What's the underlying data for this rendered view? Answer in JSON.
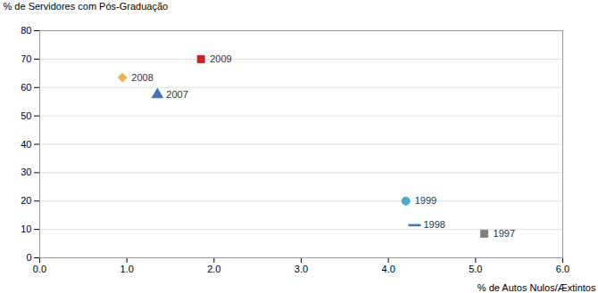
{
  "chart_data": {
    "type": "scatter",
    "xlabel": "% de Autos Nulos/Æxtintos",
    "ylabel": "% de Servidores com Pós-Graduação",
    "series": [
      {
        "name": "2009",
        "color": "#CC2222",
        "marker": "square",
        "x": [
          1.85
        ],
        "values": [
          70
        ]
      },
      {
        "name": "2008",
        "color": "#E8B84B",
        "marker": "diamond",
        "x": [
          0.95
        ],
        "values": [
          63.5
        ]
      },
      {
        "name": "2007",
        "color": "#4472C4",
        "marker": "triangle",
        "x": [
          1.35
        ],
        "values": [
          57.5
        ]
      },
      {
        "name": "1999",
        "color": "#4BACC6",
        "marker": "circle",
        "x": [
          4.2
        ],
        "values": [
          20
        ]
      },
      {
        "name": "1998",
        "color": "#4472C4",
        "marker": "hline",
        "x": [
          4.3
        ],
        "values": [
          11.5
        ]
      },
      {
        "name": "1997",
        "color": "#808080",
        "marker": "square",
        "x": [
          5.1
        ],
        "values": [
          8.5
        ]
      }
    ],
    "xlim": [
      0,
      6
    ],
    "ylim": [
      0,
      80
    ],
    "xticks": [
      0,
      1,
      2,
      3,
      4,
      5,
      6
    ],
    "yticks": [
      0,
      10,
      20,
      30,
      40,
      50,
      60,
      70,
      80
    ],
    "grid": true
  }
}
